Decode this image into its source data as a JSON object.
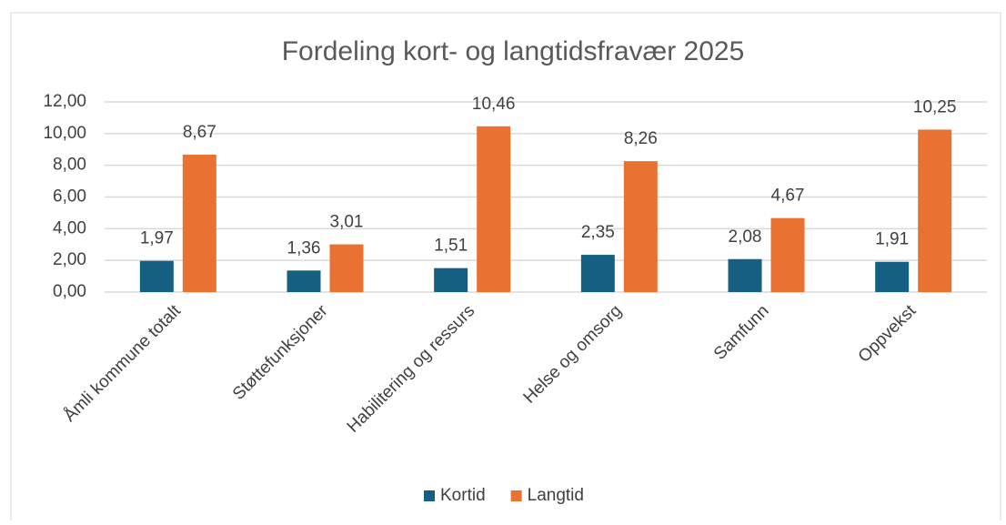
{
  "chart_data": {
    "type": "bar",
    "title": "Fordeling kort- og langtidsfravær 2025",
    "categories": [
      "Åmli kommune totalt",
      "Støttefunksjoner",
      "Habilitering og ressurs",
      "Helse og omsorg",
      "Samfunn",
      "Oppvekst"
    ],
    "series": [
      {
        "name": "Kortid",
        "color": "#156082",
        "values": [
          1.97,
          1.36,
          1.51,
          2.35,
          2.08,
          1.91
        ],
        "value_labels": [
          "1,97",
          "1,36",
          "1,51",
          "2,35",
          "2,08",
          "1,91"
        ]
      },
      {
        "name": "Langtid",
        "color": "#e97132",
        "values": [
          8.67,
          3.01,
          10.46,
          8.26,
          4.67,
          10.25
        ],
        "value_labels": [
          "8,67",
          "3,01",
          "10,46",
          "8,26",
          "4,67",
          "10,25"
        ]
      }
    ],
    "ylim": [
      0,
      12
    ],
    "yticks": [
      {
        "value": 0,
        "label": "0,00"
      },
      {
        "value": 2,
        "label": "2,00"
      },
      {
        "value": 4,
        "label": "4,00"
      },
      {
        "value": 6,
        "label": "6,00"
      },
      {
        "value": 8,
        "label": "8,00"
      },
      {
        "value": 10,
        "label": "10,00"
      },
      {
        "value": 12,
        "label": "12,00"
      }
    ],
    "grid": true,
    "legend": "bottom"
  }
}
